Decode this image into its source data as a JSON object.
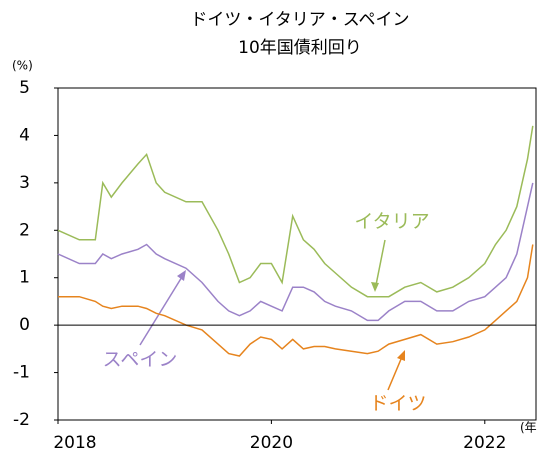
{
  "chart_data": {
    "type": "line",
    "title": "ドイツ・イタリア・スペイン",
    "subtitle": "10年国債利回り",
    "y_unit": "(%)",
    "x_unit": "(年",
    "x": [
      2018.0,
      2018.2,
      2018.35,
      2018.42,
      2018.5,
      2018.6,
      2018.75,
      2018.83,
      2018.92,
      2019.0,
      2019.2,
      2019.35,
      2019.5,
      2019.6,
      2019.7,
      2019.8,
      2019.9,
      2020.0,
      2020.1,
      2020.2,
      2020.3,
      2020.4,
      2020.5,
      2020.6,
      2020.75,
      2020.9,
      2021.0,
      2021.1,
      2021.25,
      2021.4,
      2021.55,
      2021.7,
      2021.85,
      2022.0,
      2022.1,
      2022.2,
      2022.3,
      2022.4,
      2022.45
    ],
    "series": [
      {
        "name": "イタリア",
        "color": "#9bbb59",
        "values": [
          2.0,
          1.8,
          1.8,
          3.0,
          2.7,
          3.0,
          3.4,
          3.6,
          3.0,
          2.8,
          2.6,
          2.6,
          2.0,
          1.5,
          0.9,
          1.0,
          1.3,
          1.3,
          0.9,
          2.3,
          1.8,
          1.6,
          1.3,
          1.1,
          0.8,
          0.6,
          0.6,
          0.6,
          0.8,
          0.9,
          0.7,
          0.8,
          1.0,
          1.3,
          1.7,
          2.0,
          2.5,
          3.5,
          4.2
        ]
      },
      {
        "name": "スペイン",
        "color": "#9b82c8",
        "values": [
          1.5,
          1.3,
          1.3,
          1.5,
          1.4,
          1.5,
          1.6,
          1.7,
          1.5,
          1.4,
          1.2,
          0.9,
          0.5,
          0.3,
          0.2,
          0.3,
          0.5,
          0.4,
          0.3,
          0.8,
          0.8,
          0.7,
          0.5,
          0.4,
          0.3,
          0.1,
          0.1,
          0.3,
          0.5,
          0.5,
          0.3,
          0.3,
          0.5,
          0.6,
          0.8,
          1.0,
          1.5,
          2.5,
          3.0
        ]
      },
      {
        "name": "ドイツ",
        "color": "#e6841e",
        "values": [
          0.6,
          0.6,
          0.5,
          0.4,
          0.35,
          0.4,
          0.4,
          0.35,
          0.25,
          0.2,
          0.0,
          -0.1,
          -0.4,
          -0.6,
          -0.65,
          -0.4,
          -0.25,
          -0.3,
          -0.5,
          -0.3,
          -0.5,
          -0.45,
          -0.45,
          -0.5,
          -0.55,
          -0.6,
          -0.55,
          -0.4,
          -0.3,
          -0.2,
          -0.4,
          -0.35,
          -0.25,
          -0.1,
          0.1,
          0.3,
          0.5,
          1.0,
          1.7
        ]
      }
    ],
    "xlim": [
      2018,
      2022.48
    ],
    "xticks": [
      2018,
      2020,
      2022
    ],
    "ylim": [
      -2,
      5
    ],
    "yticks": [
      -2,
      -1,
      0,
      1,
      2,
      3,
      4,
      5
    ],
    "grid": false
  }
}
